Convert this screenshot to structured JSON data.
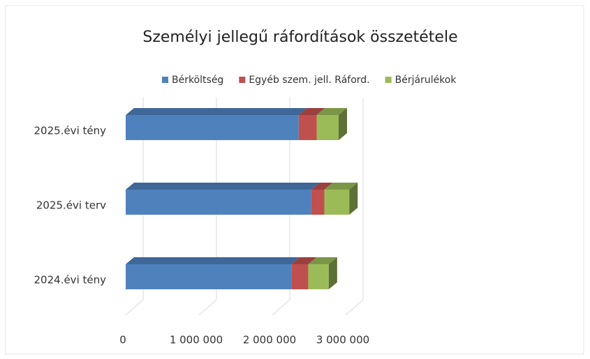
{
  "chart_data": {
    "type": "bar3d_stacked_horizontal",
    "title": "Személyi jellegű ráfordítások összetétele",
    "categories": [
      "2024.évi tény",
      "2025.évi terv",
      "2025.évi tény"
    ],
    "series": [
      {
        "name": "Bérköltség",
        "color": "#4f81bd",
        "values": [
          2260000,
          2530000,
          2360000
        ]
      },
      {
        "name": "Egyéb szem. jell. Ráford.",
        "color": "#c0504d",
        "values": [
          230000,
          180000,
          245000
        ]
      },
      {
        "name": "Bérjárulékok",
        "color": "#9bbb59",
        "values": [
          280000,
          340000,
          300000
        ]
      }
    ],
    "xlim": [
      0,
      3000000
    ],
    "xticks": [
      0,
      {
        "value": 1000000,
        "label": "1 000 000"
      },
      {
        "value": 2000000,
        "label": "2 000 000"
      },
      {
        "value": 3000000,
        "label": "3 000 000"
      }
    ],
    "grid": true
  }
}
